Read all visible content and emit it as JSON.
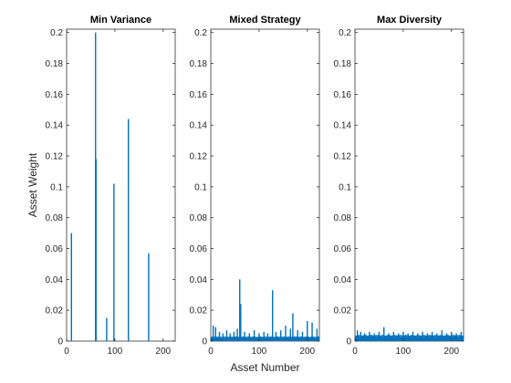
{
  "chart_data": [
    {
      "type": "bar",
      "title": "Min Variance",
      "xlabel": "",
      "ylabel": "Asset Weight",
      "xlim": [
        0,
        225
      ],
      "ylim": [
        0,
        0.2
      ],
      "xticks": [
        0,
        100,
        200
      ],
      "yticks": [
        0,
        0.02,
        0.04,
        0.06,
        0.08,
        0.1,
        0.12,
        0.14,
        0.16,
        0.18,
        0.2
      ],
      "color": "#0072BD",
      "x": [
        10,
        60,
        61,
        83,
        98,
        128,
        170
      ],
      "values": [
        0.07,
        0.2,
        0.118,
        0.015,
        0.102,
        0.144,
        0.057
      ]
    },
    {
      "type": "bar",
      "title": "Mixed Strategy",
      "xlabel": "Asset Number",
      "ylabel": "",
      "xlim": [
        0,
        225
      ],
      "ylim": [
        0,
        0.2
      ],
      "xticks": [
        0,
        100,
        200
      ],
      "yticks": [
        0,
        0.02,
        0.04,
        0.06,
        0.08,
        0.1,
        0.12,
        0.14,
        0.16,
        0.18,
        0.2
      ],
      "color": "#0072BD",
      "x": [
        5,
        10,
        18,
        25,
        33,
        40,
        48,
        55,
        60,
        62,
        70,
        80,
        90,
        100,
        110,
        118,
        128,
        135,
        145,
        155,
        165,
        170,
        180,
        190,
        200,
        210,
        220
      ],
      "values": [
        0.01,
        0.009,
        0.006,
        0.005,
        0.007,
        0.005,
        0.006,
        0.008,
        0.04,
        0.024,
        0.006,
        0.005,
        0.007,
        0.005,
        0.006,
        0.005,
        0.033,
        0.006,
        0.007,
        0.01,
        0.008,
        0.018,
        0.007,
        0.006,
        0.013,
        0.012,
        0.008
      ],
      "baseline": 0.003
    },
    {
      "type": "bar",
      "title": "Max Diversity",
      "xlabel": "",
      "ylabel": "",
      "xlim": [
        0,
        225
      ],
      "ylim": [
        0,
        0.2
      ],
      "xticks": [
        0,
        100,
        200
      ],
      "yticks": [
        0,
        0.02,
        0.04,
        0.06,
        0.08,
        0.1,
        0.12,
        0.14,
        0.16,
        0.18,
        0.2
      ],
      "color": "#0072BD",
      "x": [
        5,
        12,
        20,
        30,
        40,
        50,
        60,
        70,
        80,
        90,
        100,
        110,
        120,
        130,
        140,
        150,
        160,
        170,
        180,
        190,
        200,
        210,
        220
      ],
      "values": [
        0.007,
        0.006,
        0.005,
        0.006,
        0.005,
        0.006,
        0.009,
        0.005,
        0.006,
        0.005,
        0.006,
        0.005,
        0.006,
        0.005,
        0.006,
        0.005,
        0.006,
        0.005,
        0.007,
        0.005,
        0.006,
        0.005,
        0.006
      ],
      "baseline": 0.004
    }
  ]
}
